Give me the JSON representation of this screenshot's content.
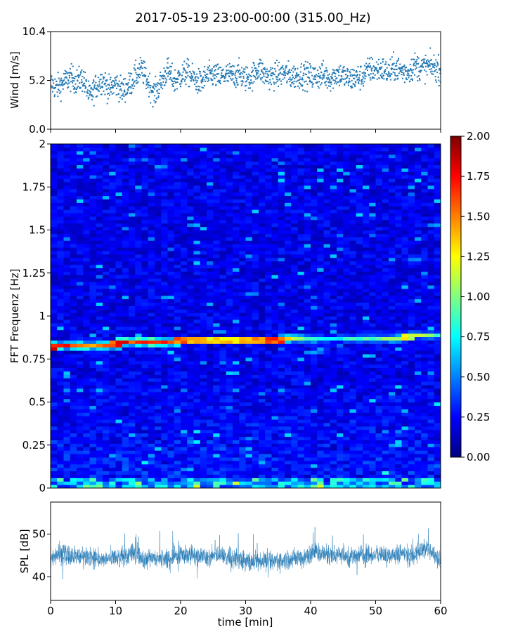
{
  "title": "2017-05-19 23:00-00:00 (315.00_Hz)",
  "chart_data": [
    {
      "type": "scatter",
      "panel": "wind",
      "ylabel": "Wind [m/s]",
      "xlim": [
        0,
        60
      ],
      "ylim": [
        0,
        10.4
      ],
      "yticks": [
        0,
        5.2,
        10.4
      ],
      "ytick_labels": [
        "0.0",
        "5.2",
        "10.4"
      ],
      "marker_color": "#1f77b4",
      "x": [
        0,
        1,
        2,
        3,
        4,
        5,
        6,
        7,
        8,
        9,
        10,
        11,
        12,
        13,
        14,
        15,
        16,
        17,
        18,
        19,
        20,
        21,
        22,
        23,
        24,
        25,
        26,
        27,
        28,
        29,
        30,
        31,
        32,
        33,
        34,
        35,
        36,
        37,
        38,
        39,
        40,
        41,
        42,
        43,
        44,
        45,
        46,
        47,
        48,
        49,
        50,
        51,
        52,
        53,
        54,
        55,
        56,
        57,
        58,
        59,
        60
      ],
      "y": [
        4.9,
        4.4,
        5.0,
        5.5,
        5.1,
        5.4,
        3.4,
        4.6,
        5.3,
        4.2,
        4.9,
        4.1,
        4.6,
        5.6,
        6.4,
        5.0,
        3.7,
        5.0,
        6.3,
        5.1,
        5.6,
        6.1,
        5.4,
        4.9,
        5.6,
        5.8,
        5.5,
        5.8,
        5.7,
        5.9,
        5.4,
        5.6,
        6.6,
        5.7,
        5.6,
        5.8,
        6.0,
        5.6,
        5.7,
        5.8,
        5.6,
        5.6,
        5.8,
        5.4,
        5.9,
        5.7,
        5.3,
        5.5,
        5.6,
        6.4,
        6.3,
        6.4,
        6.0,
        6.6,
        6.2,
        6.1,
        6.8,
        6.5,
        6.7,
        6.6,
        6.3
      ],
      "note_points": "one representative value per minute; point cloud spread ~±1.6 m/s around these"
    },
    {
      "type": "heatmap",
      "panel": "spectrogram",
      "ylabel": "FFT Frequenz [Hz]",
      "xlim": [
        0,
        60
      ],
      "ylim": [
        0,
        2
      ],
      "yticks": [
        0,
        0.25,
        0.5,
        0.75,
        1,
        1.25,
        1.5,
        1.75,
        2
      ],
      "ytick_labels": [
        "0",
        "0.25",
        "0.5",
        "0.75",
        "1",
        "1.25",
        "1.5",
        "1.75",
        "2"
      ],
      "colormap": "jet",
      "colorbar": {
        "vmin": 0,
        "vmax": 2,
        "ticks": [
          "0.00",
          "0.25",
          "0.50",
          "0.75",
          "1.00",
          "1.25",
          "1.50",
          "1.75",
          "2.00"
        ]
      },
      "ridge": {
        "x": [
          0,
          5,
          10,
          15,
          20,
          25,
          30,
          35,
          40,
          45,
          50,
          55,
          60
        ],
        "freq": [
          0.82,
          0.83,
          0.84,
          0.85,
          0.86,
          0.86,
          0.86,
          0.86,
          0.87,
          0.87,
          0.87,
          0.88,
          0.89
        ],
        "magnitude": [
          1.8,
          1.6,
          1.7,
          1.9,
          1.6,
          1.3,
          1.5,
          1.7,
          0.9,
          0.8,
          1.0,
          1.3,
          0.9
        ]
      },
      "background_level": 0.2,
      "low_freq_band_level": 0.6
    },
    {
      "type": "line",
      "panel": "spl",
      "ylabel": "SPL [dB]",
      "xlabel": "time [min]",
      "xlim": [
        0,
        60
      ],
      "ylim": [
        34.5,
        57.5
      ],
      "yticks": [
        40,
        50
      ],
      "ytick_labels": [
        "40",
        "50"
      ],
      "xticks": [
        0,
        10,
        20,
        30,
        40,
        50,
        60
      ],
      "xtick_labels": [
        "0",
        "10",
        "20",
        "30",
        "40",
        "50",
        "60"
      ],
      "line_color": "#1f77b4",
      "x": [
        0,
        2,
        4,
        6,
        8,
        10,
        12,
        13,
        14,
        16,
        18,
        20,
        22,
        24,
        26,
        28,
        30,
        32,
        34,
        36,
        38,
        40,
        41,
        42,
        44,
        46,
        48,
        50,
        52,
        54,
        56,
        57.5,
        59,
        60
      ],
      "center": [
        45,
        45.5,
        44.5,
        45,
        44,
        44.5,
        44.8,
        46,
        44,
        44.5,
        44,
        45.5,
        45,
        44.5,
        45,
        44.5,
        43.5,
        44,
        43.5,
        44,
        44.5,
        45,
        46,
        45,
        45.5,
        44.5,
        45,
        45.5,
        45,
        45.5,
        45,
        47,
        45,
        44.5
      ],
      "low": [
        40,
        39,
        38.5,
        39,
        39,
        38,
        38.5,
        40,
        38.5,
        39,
        38,
        40,
        39.5,
        38.5,
        39,
        38.5,
        37.5,
        38,
        38,
        38.5,
        39,
        39.5,
        40,
        39,
        40,
        39,
        39,
        40,
        39.5,
        40,
        39.5,
        41,
        39.5,
        39
      ],
      "high": [
        51,
        52,
        50,
        51,
        50,
        50.5,
        51,
        55,
        50,
        51,
        50.5,
        52,
        51,
        50.5,
        51,
        50.5,
        50,
        50.5,
        50,
        50.5,
        51,
        52,
        54,
        51.5,
        52,
        51,
        51.5,
        52,
        51.5,
        52,
        52,
        53.5,
        51.5,
        51
      ]
    }
  ]
}
